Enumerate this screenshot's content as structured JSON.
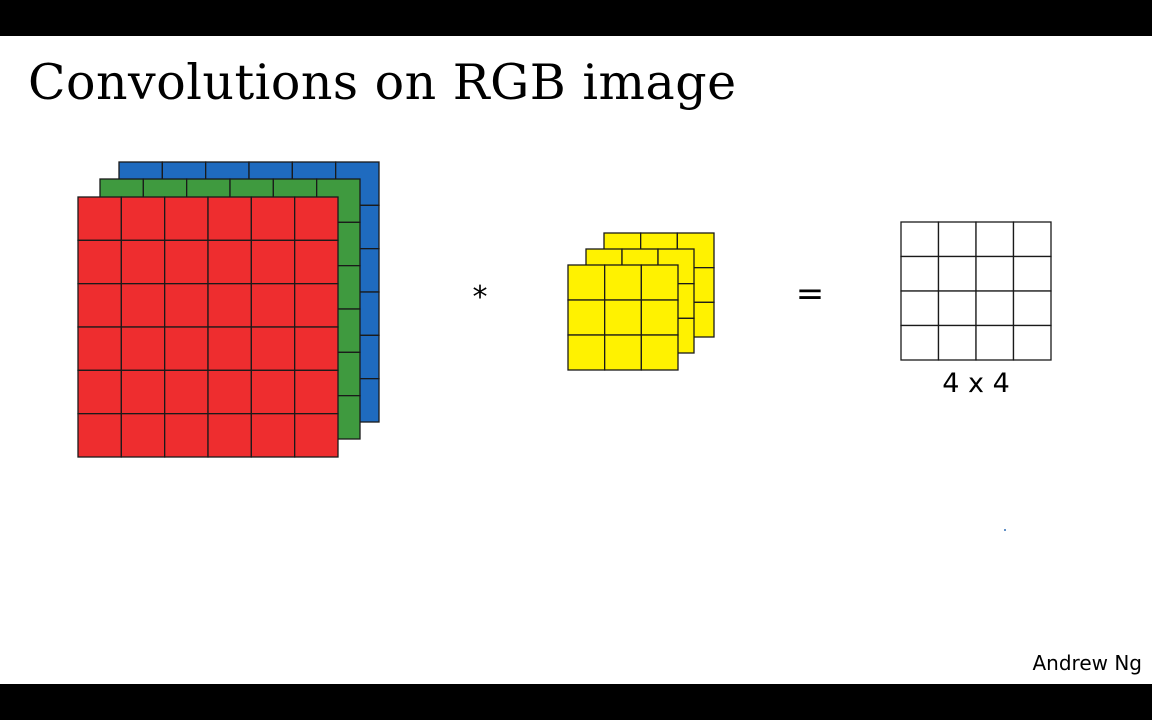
{
  "slide": {
    "title": "Convolutions on RGB image",
    "operator_symbol": "*",
    "equals_symbol": "=",
    "output_label": "4 x 4",
    "author": "Andrew Ng"
  },
  "input_volume": {
    "rows": 6,
    "cols": 6,
    "channels": [
      {
        "color": "#1f6bbf"
      },
      {
        "color": "#3f9a3f"
      },
      {
        "color": "#ee2d2f"
      }
    ]
  },
  "filter_volume": {
    "rows": 3,
    "cols": 3,
    "channels": [
      {
        "color": "#fff200"
      },
      {
        "color": "#fff200"
      },
      {
        "color": "#fff200"
      }
    ]
  },
  "output_grid": {
    "rows": 4,
    "cols": 4,
    "color": "#ffffff"
  },
  "colors": {
    "grid_line": "#1a1a1a",
    "background": "#ffffff"
  }
}
